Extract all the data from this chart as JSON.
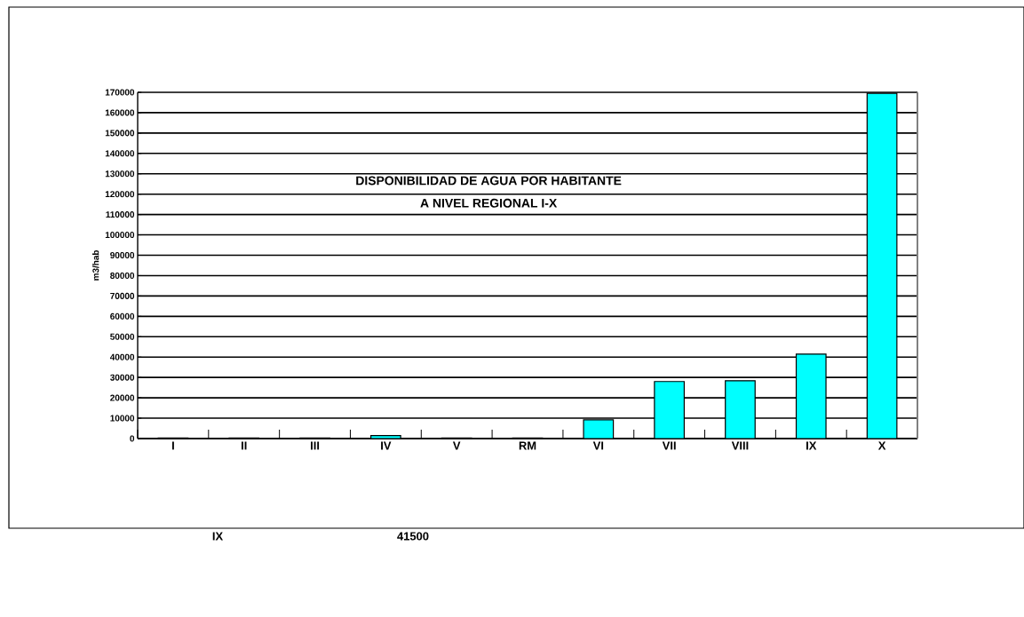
{
  "chart_data": {
    "type": "bar",
    "title": "DISPONIBILIDAD DE AGUA POR HABITANTE",
    "subtitle": "A NIVEL REGIONAL I-X",
    "ylabel": "m3/hab",
    "categories": [
      "I",
      "II",
      "III",
      "IV",
      "V",
      "RM",
      "VI",
      "VII",
      "VIII",
      "IX",
      "X"
    ],
    "values": [
      300,
      300,
      300,
      1500,
      300,
      300,
      9200,
      28000,
      28400,
      41500,
      169500
    ],
    "color": "#00ffff",
    "ylim": [
      0,
      170000
    ],
    "yticks": [
      0,
      10000,
      20000,
      30000,
      40000,
      50000,
      60000,
      70000,
      80000,
      90000,
      100000,
      110000,
      120000,
      130000,
      140000,
      150000,
      160000,
      170000
    ],
    "grid": "y",
    "annotations": [
      "IX",
      "41500"
    ]
  }
}
